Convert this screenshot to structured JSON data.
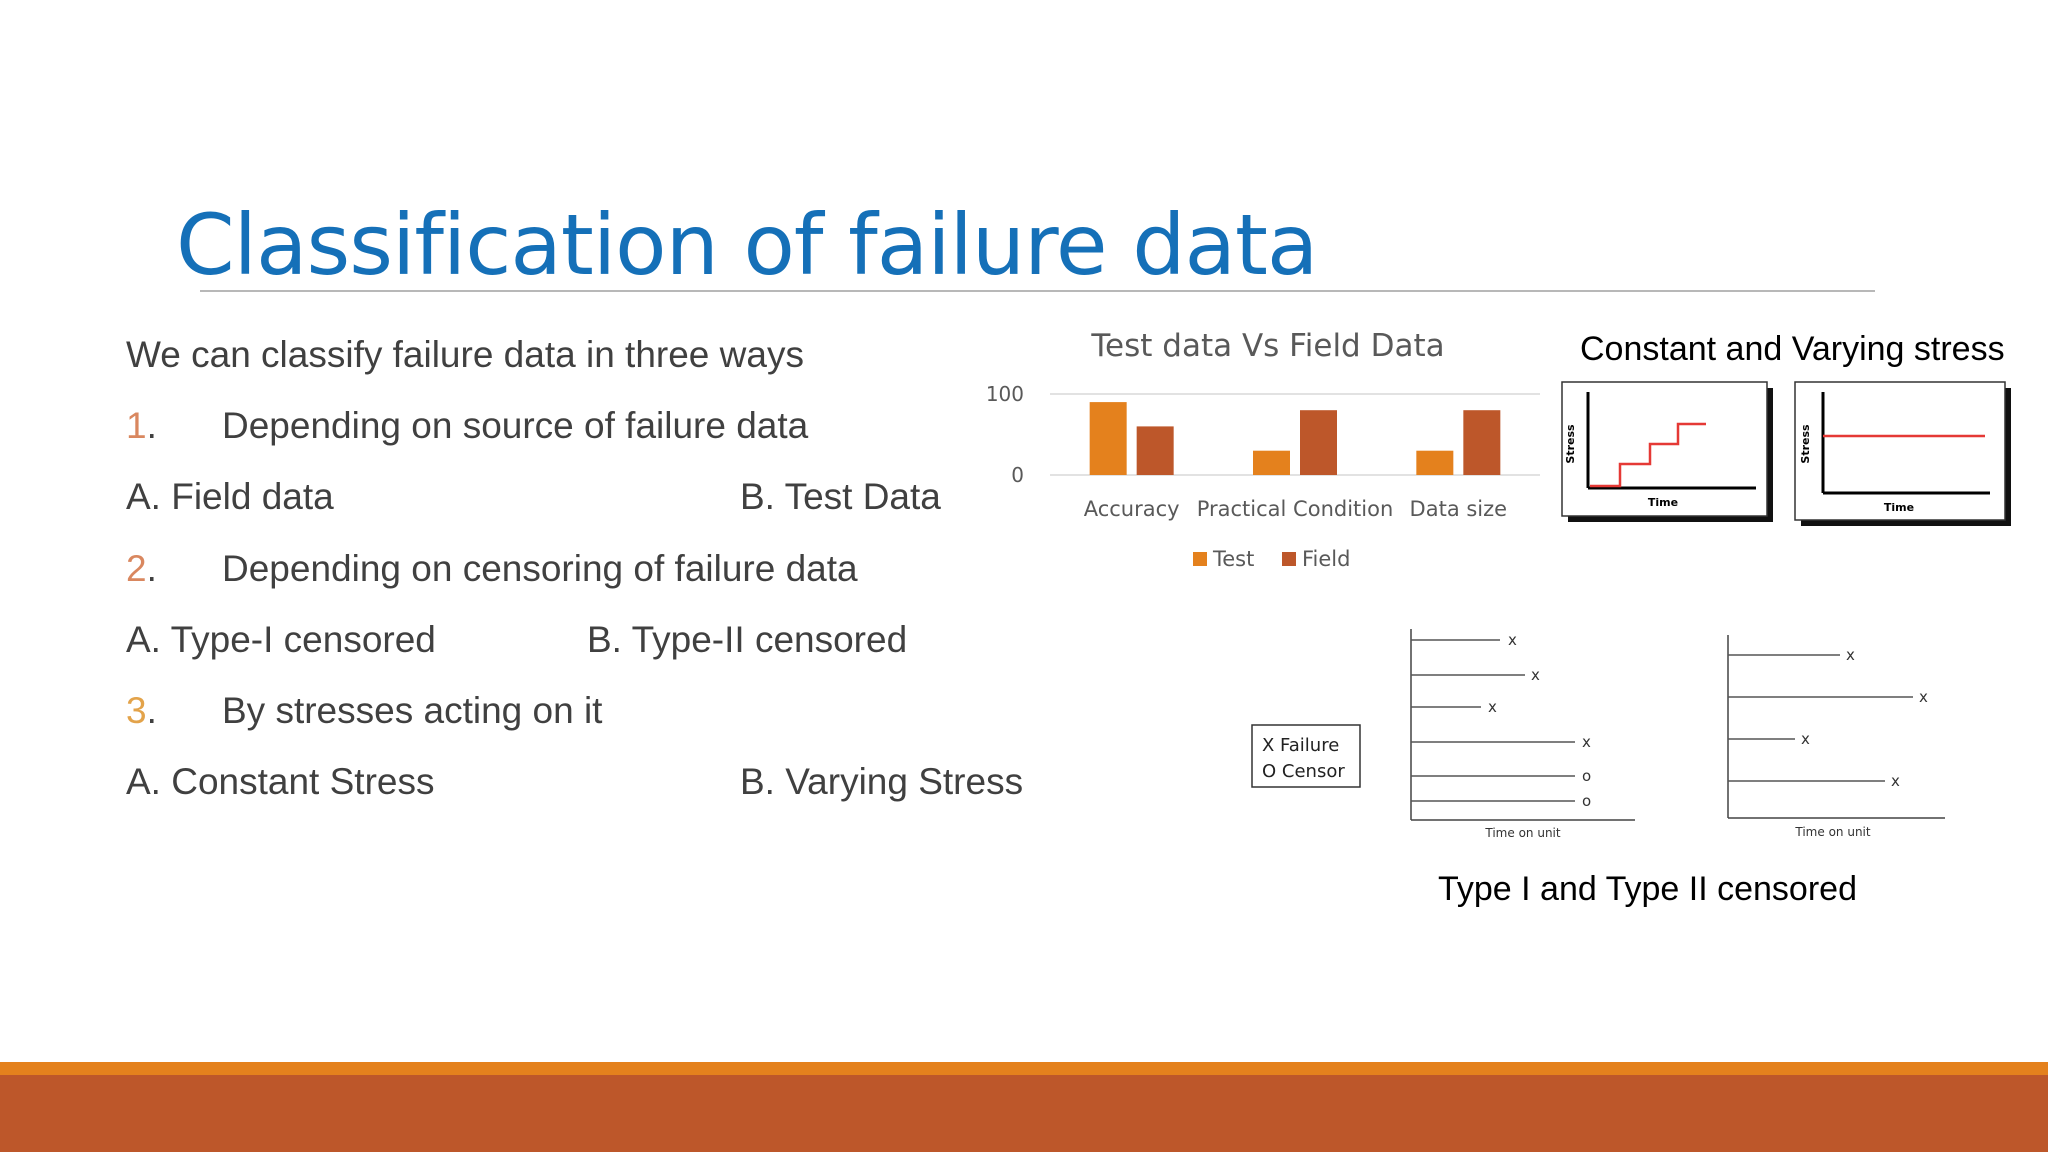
{
  "slide": {
    "title": "Classification of failure data",
    "intro": "We can classify failure data in three ways",
    "points": [
      {
        "num": "1",
        "num_color": "#d9875f",
        "text": "Depending on source of failure data",
        "options": [
          "A. Field data",
          "B. Test Data"
        ]
      },
      {
        "num": "2",
        "num_color": "#d9875f",
        "text": "Depending on censoring of failure data",
        "options": [
          "A. Type-I censored",
          "B. Type-II censored"
        ]
      },
      {
        "num": "3",
        "num_color": "#e3a34a",
        "text": "By stresses acting on it",
        "options": [
          "A. Constant Stress",
          "B. Varying Stress"
        ]
      }
    ],
    "stress_caption": "Constant and Varying stress",
    "censor_caption": "Type I and Type II censored"
  },
  "stress_plots": {
    "y_label": "Stress",
    "x_label": "Time",
    "line_color": "#e53935"
  },
  "censor_figure": {
    "legend": [
      "X  Failure",
      "O  Censor"
    ],
    "x_label": "Time on unit",
    "type1_marks": [
      "x",
      "x",
      "x",
      "x",
      "o",
      "o"
    ],
    "type2_marks": [
      "x",
      "x",
      "x",
      "x"
    ]
  },
  "colors": {
    "title": "#1570b8",
    "test": "#e4811d",
    "field": "#bd572a",
    "footer_stripe": "#e4811d",
    "footer_bar": "#bd572a"
  },
  "chart_data": {
    "type": "bar",
    "title": "Test data Vs Field Data",
    "categories": [
      "Accuracy",
      "Practical Condition",
      "Data size"
    ],
    "series": [
      {
        "name": "Test",
        "values": [
          90,
          30,
          30
        ]
      },
      {
        "name": "Field",
        "values": [
          60,
          80,
          80
        ]
      }
    ],
    "yticks": [
      "100",
      "0"
    ],
    "ylim": [
      0,
      100
    ],
    "grid": true,
    "legend": "bottom"
  }
}
